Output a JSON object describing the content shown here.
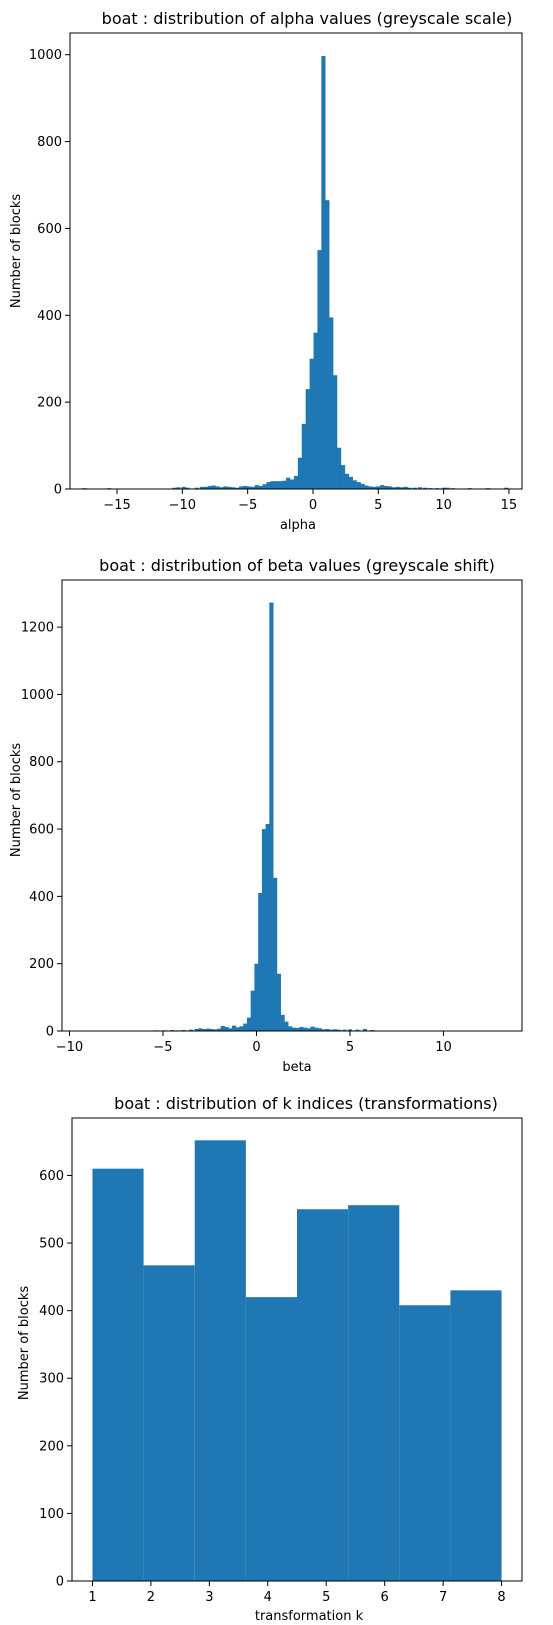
{
  "figure": {
    "bar_color": "#1f77b4"
  },
  "chart_data": [
    {
      "type": "bar",
      "title": "boat : distribution of alpha values (greyscale scale)",
      "xlabel": "alpha",
      "ylabel": "Number of blocks",
      "xlim": [
        -18.6,
        16.0
      ],
      "ylim": [
        0,
        1050
      ],
      "xticks": [
        -15,
        -10,
        -5,
        0,
        5,
        10,
        15
      ],
      "yticks": [
        0,
        200,
        400,
        600,
        800,
        1000
      ],
      "bin_width": 0.32,
      "bins": [
        [
          -17.5,
          2
        ],
        [
          -15.6,
          2
        ],
        [
          -12.2,
          1
        ],
        [
          -10.6,
          3
        ],
        [
          -10.3,
          4
        ],
        [
          -9.9,
          5
        ],
        [
          -9.6,
          3
        ],
        [
          -8.9,
          3
        ],
        [
          -8.5,
          5
        ],
        [
          -8.2,
          5
        ],
        [
          -7.9,
          7
        ],
        [
          -7.6,
          8
        ],
        [
          -7.3,
          6
        ],
        [
          -7.0,
          4
        ],
        [
          -6.7,
          6
        ],
        [
          -6.4,
          5
        ],
        [
          -6.1,
          4
        ],
        [
          -5.8,
          3
        ],
        [
          -5.5,
          6
        ],
        [
          -5.2,
          7
        ],
        [
          -4.9,
          6
        ],
        [
          -4.6,
          5
        ],
        [
          -4.3,
          9
        ],
        [
          -4.0,
          7
        ],
        [
          -3.7,
          11
        ],
        [
          -3.4,
          16
        ],
        [
          -3.1,
          18
        ],
        [
          -2.8,
          18
        ],
        [
          -2.5,
          18
        ],
        [
          -2.2,
          19
        ],
        [
          -1.9,
          26
        ],
        [
          -1.6,
          22
        ],
        [
          -1.3,
          30
        ],
        [
          -1.0,
          72
        ],
        [
          -0.7,
          150
        ],
        [
          -0.4,
          230
        ],
        [
          -0.1,
          300
        ],
        [
          0.2,
          360
        ],
        [
          0.5,
          550
        ],
        [
          0.8,
          997
        ],
        [
          1.1,
          665
        ],
        [
          1.4,
          395
        ],
        [
          1.7,
          262
        ],
        [
          2.0,
          95
        ],
        [
          2.3,
          55
        ],
        [
          2.6,
          35
        ],
        [
          2.9,
          28
        ],
        [
          3.2,
          20
        ],
        [
          3.5,
          16
        ],
        [
          3.8,
          12
        ],
        [
          4.1,
          8
        ],
        [
          4.4,
          6
        ],
        [
          4.7,
          5
        ],
        [
          5.0,
          6
        ],
        [
          5.3,
          9
        ],
        [
          5.6,
          7
        ],
        [
          5.9,
          6
        ],
        [
          6.2,
          4
        ],
        [
          6.5,
          5
        ],
        [
          6.8,
          4
        ],
        [
          7.1,
          5
        ],
        [
          7.4,
          3
        ],
        [
          7.8,
          3
        ],
        [
          8.2,
          4
        ],
        [
          8.6,
          3
        ],
        [
          9.0,
          2
        ],
        [
          9.5,
          2
        ],
        [
          10.0,
          3
        ],
        [
          10.3,
          3
        ],
        [
          10.7,
          2
        ],
        [
          12.0,
          2
        ],
        [
          13.4,
          2
        ],
        [
          14.8,
          3
        ]
      ]
    },
    {
      "type": "bar",
      "title": "boat : distribution of beta values (greyscale shift)",
      "xlabel": "beta",
      "ylabel": "Number of blocks",
      "xlim": [
        -10.4,
        14.2
      ],
      "ylim": [
        0,
        1340
      ],
      "xticks": [
        -10,
        -5,
        0,
        5,
        10
      ],
      "yticks": [
        0,
        200,
        400,
        600,
        800,
        1000,
        1200
      ],
      "bin_width": 0.22,
      "bins": [
        [
          -9.3,
          1
        ],
        [
          -5.4,
          2
        ],
        [
          -4.9,
          2
        ],
        [
          -4.5,
          3
        ],
        [
          -4.2,
          2
        ],
        [
          -3.9,
          3
        ],
        [
          -3.5,
          4
        ],
        [
          -3.2,
          6
        ],
        [
          -3.0,
          8
        ],
        [
          -2.8,
          6
        ],
        [
          -2.6,
          7
        ],
        [
          -2.4,
          6
        ],
        [
          -2.2,
          5
        ],
        [
          -2.0,
          7
        ],
        [
          -1.8,
          15
        ],
        [
          -1.6,
          12
        ],
        [
          -1.4,
          8
        ],
        [
          -1.2,
          16
        ],
        [
          -1.0,
          11
        ],
        [
          -0.8,
          14
        ],
        [
          -0.6,
          22
        ],
        [
          -0.4,
          40
        ],
        [
          -0.2,
          120
        ],
        [
          0.0,
          200
        ],
        [
          0.2,
          410
        ],
        [
          0.4,
          600
        ],
        [
          0.6,
          615
        ],
        [
          0.8,
          1273
        ],
        [
          1.0,
          455
        ],
        [
          1.2,
          170
        ],
        [
          1.4,
          48
        ],
        [
          1.6,
          28
        ],
        [
          1.8,
          14
        ],
        [
          2.0,
          10
        ],
        [
          2.2,
          9
        ],
        [
          2.4,
          12
        ],
        [
          2.6,
          10
        ],
        [
          2.8,
          8
        ],
        [
          3.0,
          13
        ],
        [
          3.2,
          10
        ],
        [
          3.4,
          8
        ],
        [
          3.6,
          5
        ],
        [
          3.8,
          6
        ],
        [
          4.0,
          4
        ],
        [
          4.2,
          5
        ],
        [
          4.4,
          4
        ],
        [
          4.7,
          4
        ],
        [
          5.0,
          5
        ],
        [
          5.4,
          4
        ],
        [
          5.8,
          6
        ],
        [
          6.2,
          3
        ]
      ]
    },
    {
      "type": "bar",
      "title": "boat : distribution of k indices (transformations)",
      "xlabel": "transformation k",
      "ylabel": "Number of blocks",
      "xlim": [
        0.65,
        8.35
      ],
      "ylim": [
        0,
        685
      ],
      "xticks": [
        1,
        2,
        3,
        4,
        5,
        6,
        7,
        8
      ],
      "yticks": [
        0,
        100,
        200,
        300,
        400,
        500,
        600
      ],
      "bin_width": 0.875,
      "bins": [
        [
          1.4375,
          610
        ],
        [
          2.3125,
          467
        ],
        [
          3.1875,
          652
        ],
        [
          4.0625,
          420
        ],
        [
          4.9375,
          550
        ],
        [
          5.8125,
          556
        ],
        [
          6.6875,
          408
        ],
        [
          7.5625,
          430
        ]
      ]
    }
  ]
}
